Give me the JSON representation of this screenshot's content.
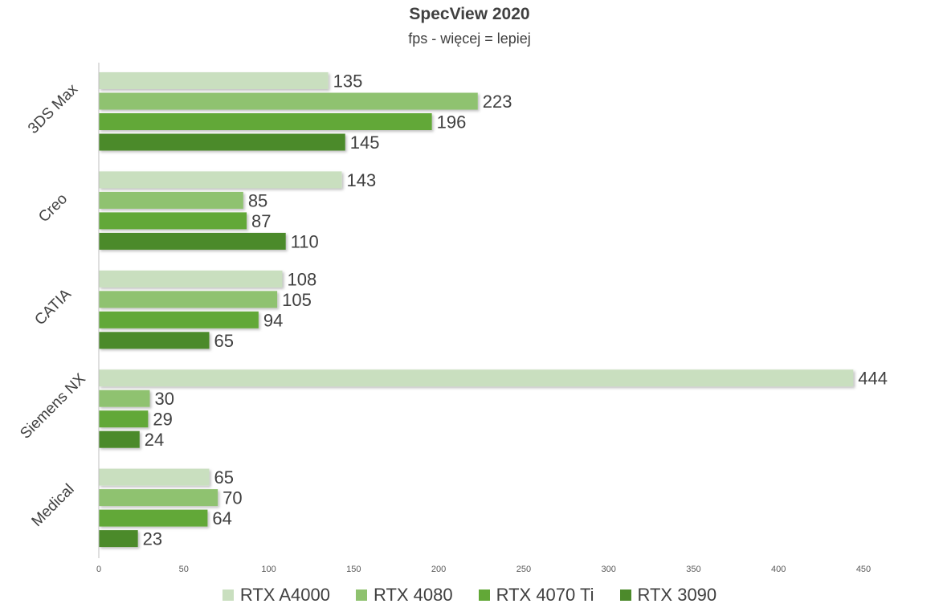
{
  "chart_data": {
    "type": "bar",
    "orientation": "horizontal",
    "title": "SpecView 2020",
    "subtitle": "fps - więcej = lepiej",
    "categories": [
      "3DS Max",
      "Creo",
      "CATIA",
      "Siemens NX",
      "Medical"
    ],
    "series": [
      {
        "name": "RTX A4000",
        "color": "#c9dfbf",
        "values": [
          135,
          143,
          108,
          444,
          65
        ]
      },
      {
        "name": "RTX 4080",
        "color": "#8fc26f",
        "values": [
          223,
          85,
          105,
          30,
          70
        ]
      },
      {
        "name": "RTX 4070 Ti",
        "color": "#62a837",
        "values": [
          196,
          87,
          94,
          29,
          64
        ]
      },
      {
        "name": "RTX 3090",
        "color": "#4c8a2b",
        "values": [
          145,
          110,
          65,
          24,
          23
        ]
      }
    ],
    "xlim": [
      0,
      450
    ],
    "xticks": [
      0,
      50,
      100,
      150,
      200,
      250,
      300,
      350,
      400,
      450
    ],
    "grid": false,
    "legend_position": "bottom"
  }
}
